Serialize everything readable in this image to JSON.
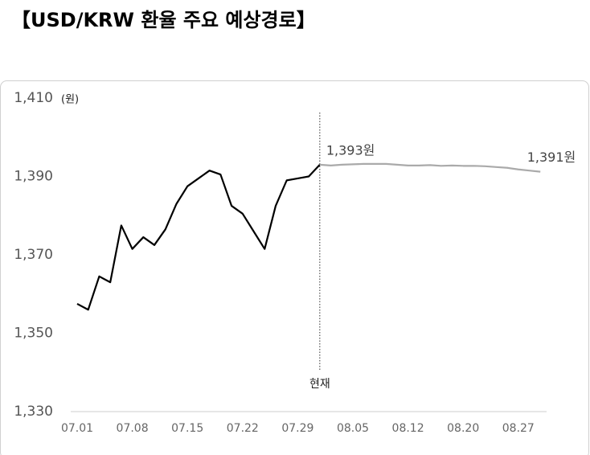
{
  "chart_data": {
    "type": "line",
    "title": "【USD/KRW 환율 주요 예상경로】",
    "y_unit": "(원)",
    "now_label": "현재",
    "categories": [
      "07.01",
      null,
      null,
      null,
      null,
      "07.08",
      null,
      null,
      null,
      null,
      "07.15",
      null,
      null,
      null,
      null,
      "07.22",
      null,
      null,
      null,
      null,
      "07.29",
      null,
      null,
      null,
      null,
      "08.05",
      null,
      null,
      null,
      null,
      "08.12",
      null,
      null,
      null,
      null,
      "08.20",
      null,
      null,
      null,
      null,
      "08.27",
      null,
      null
    ],
    "series": [
      {
        "color": "#000000",
        "values": [
          1357.5,
          1356,
          1364.5,
          1363,
          1377.5,
          1371.5,
          1374.5,
          1372.5,
          1376.5,
          1383,
          1387.5,
          1389.5,
          1391.5,
          1390.5,
          1382.5,
          1380.5,
          1376,
          1371.5,
          1382.5,
          1389,
          1389.5,
          1390,
          1393,
          null,
          null,
          null,
          null,
          null,
          null,
          null,
          null,
          null,
          null,
          null,
          null,
          null,
          null,
          null,
          null,
          null,
          null,
          null,
          null
        ]
      },
      {
        "color": "#aaaaaa",
        "values": [
          null,
          null,
          null,
          null,
          null,
          null,
          null,
          null,
          null,
          null,
          null,
          null,
          null,
          null,
          null,
          null,
          null,
          null,
          null,
          null,
          null,
          null,
          1393,
          1392.8,
          1393,
          1393.1,
          1393.2,
          1393.2,
          1393.2,
          1393,
          1392.8,
          1392.8,
          1392.9,
          1392.7,
          1392.8,
          1392.7,
          1392.7,
          1392.6,
          1392.4,
          1392.2,
          1391.8,
          1391.5,
          1391.2
        ],
        "value_labels": [
          null,
          null,
          null,
          null,
          null,
          null,
          null,
          null,
          null,
          null,
          null,
          null,
          null,
          null,
          null,
          null,
          null,
          null,
          null,
          null,
          null,
          null,
          "1,393원",
          null,
          null,
          null,
          null,
          null,
          null,
          null,
          null,
          null,
          null,
          null,
          null,
          null,
          null,
          null,
          null,
          null,
          null,
          null,
          "1,391원"
        ]
      }
    ],
    "ylim": [
      1330,
      1410
    ],
    "yticks": [
      {
        "value": 1330,
        "label": "1,330"
      },
      {
        "value": 1350,
        "label": "1,350"
      },
      {
        "value": 1370,
        "label": "1,370"
      },
      {
        "value": 1390,
        "label": "1,390"
      },
      {
        "value": 1410,
        "label": "1,410"
      }
    ]
  }
}
